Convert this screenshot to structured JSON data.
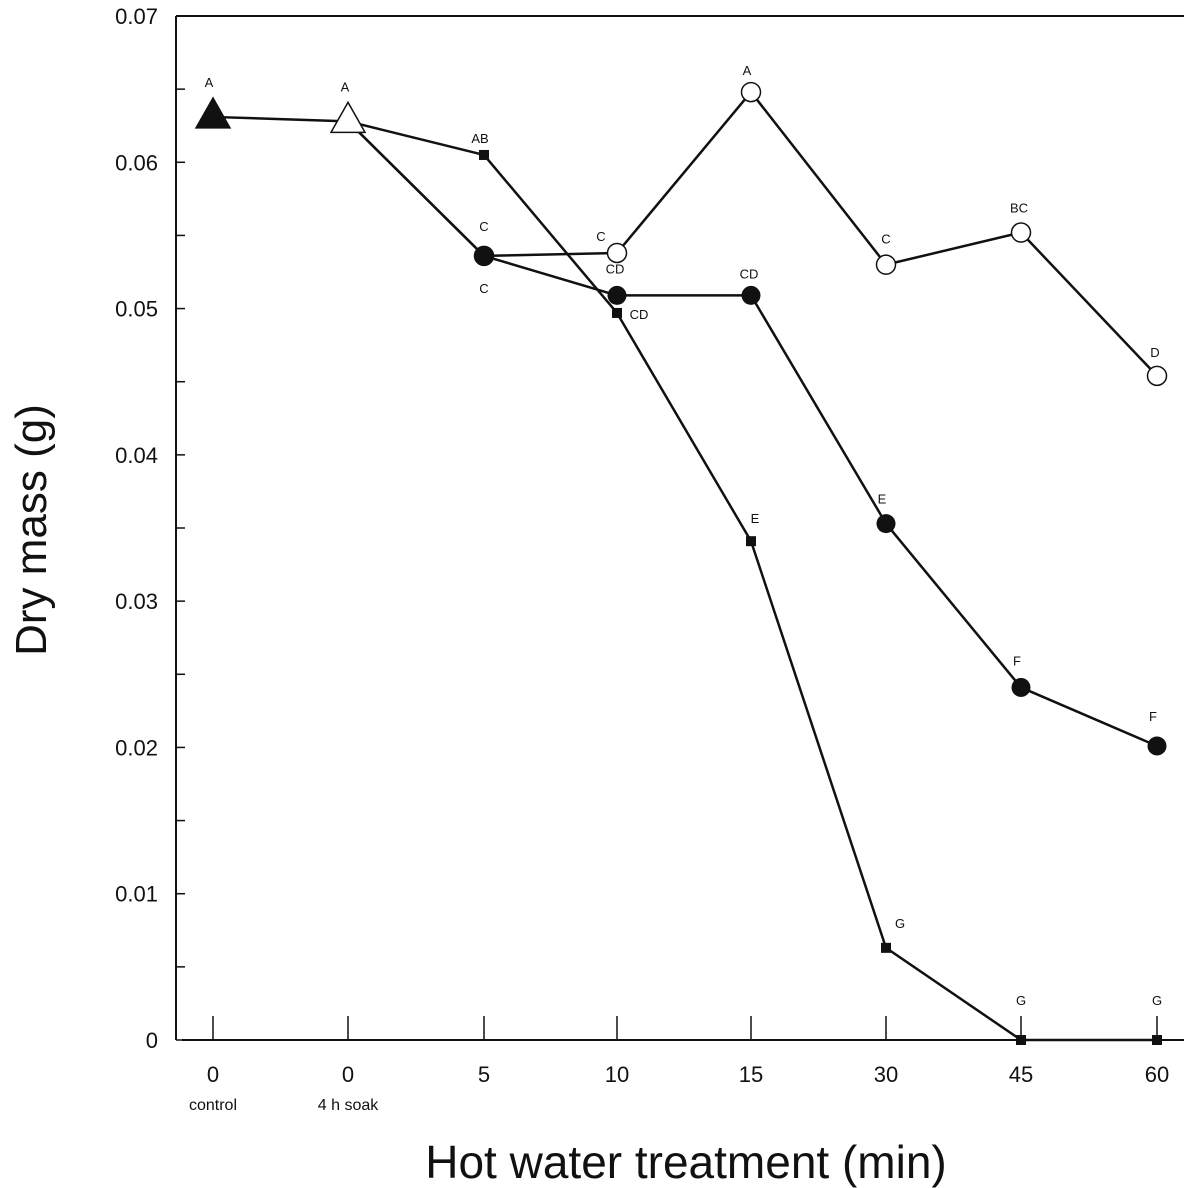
{
  "chart_data": {
    "type": "line",
    "title": "",
    "xlabel": "Hot water treatment (min)",
    "ylabel": "Dry mass (g)",
    "ylim": [
      0,
      0.07
    ],
    "y_ticks": [
      "0",
      "0.01",
      "0.02",
      "0.03",
      "0.04",
      "0.05",
      "0.06",
      "0.07"
    ],
    "categories": [
      "0",
      "0",
      "5",
      "10",
      "15",
      "30",
      "45",
      "60"
    ],
    "category_sublabels": [
      "control",
      "4 h soak",
      "",
      "",
      "",
      "",
      "",
      ""
    ],
    "grid": false,
    "legend": "none",
    "series": [
      {
        "marker": "filled-triangle",
        "points": [
          {
            "x": "0 control",
            "y": 0.0631,
            "letter": "A"
          }
        ]
      },
      {
        "marker": "open-triangle",
        "points": [
          {
            "x": "0 4 h soak",
            "y": 0.0628,
            "letter": "A"
          }
        ]
      },
      {
        "marker": "open-circle",
        "points": [
          {
            "x": "0 control",
            "y": 0.0631,
            "letter": ""
          },
          {
            "x": "0 4 h soak",
            "y": 0.0628,
            "letter": ""
          },
          {
            "x": "5",
            "y": 0.0536,
            "letter": ""
          },
          {
            "x": "10",
            "y": 0.0538,
            "letter": "C"
          },
          {
            "x": "15",
            "y": 0.0648,
            "letter": "A"
          },
          {
            "x": "30",
            "y": 0.053,
            "letter": "C"
          },
          {
            "x": "45",
            "y": 0.0552,
            "letter": "BC"
          },
          {
            "x": "60",
            "y": 0.0454,
            "letter": "D"
          }
        ]
      },
      {
        "marker": "filled-circle",
        "points": [
          {
            "x": "0 4 h soak",
            "y": 0.0628,
            "letter": ""
          },
          {
            "x": "5",
            "y": 0.0536,
            "letter": "C"
          },
          {
            "x": "10",
            "y": 0.0509,
            "letter": "CD"
          },
          {
            "x": "15",
            "y": 0.0509,
            "letter": "CD"
          },
          {
            "x": "30",
            "y": 0.0353,
            "letter": "E"
          },
          {
            "x": "45",
            "y": 0.0241,
            "letter": "F"
          },
          {
            "x": "60",
            "y": 0.0201,
            "letter": "F"
          }
        ]
      },
      {
        "marker": "filled-square",
        "points": [
          {
            "x": "0 4 h soak",
            "y": 0.0628,
            "letter": ""
          },
          {
            "x": "5",
            "y": 0.0605,
            "letter": "AB"
          },
          {
            "x": "10",
            "y": 0.0497,
            "letter": "CD"
          },
          {
            "x": "15",
            "y": 0.0341,
            "letter": "E"
          },
          {
            "x": "30",
            "y": 0.0063,
            "letter": "G"
          },
          {
            "x": "45",
            "y": 0.0,
            "letter": "G"
          },
          {
            "x": "60",
            "y": 0.0,
            "letter": "G"
          }
        ]
      }
    ],
    "extra_letters": [
      {
        "x": "5",
        "y": 0.0536,
        "letter": "C",
        "note": "below"
      }
    ]
  }
}
